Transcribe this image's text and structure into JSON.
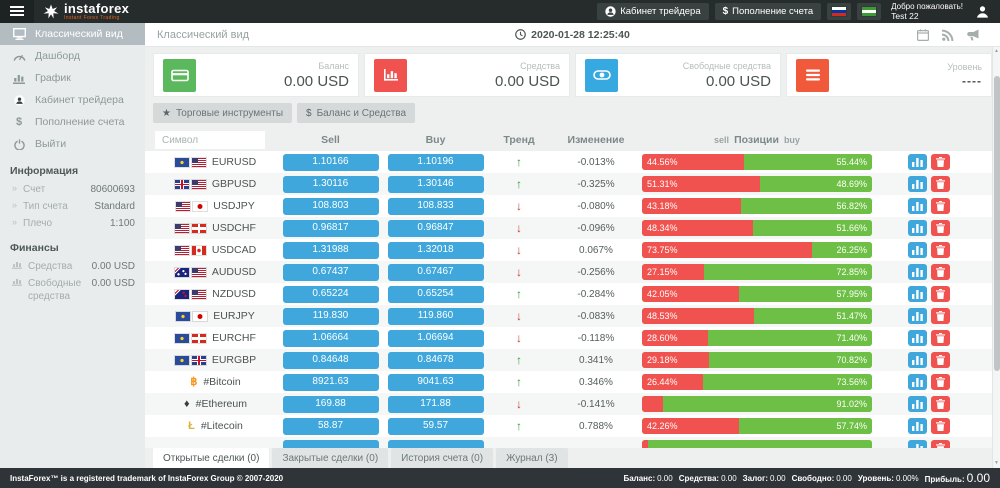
{
  "colors": {
    "accent_blue": "#3fa7dc",
    "negative_red": "#f0534f",
    "positive_green": "#6dbf45",
    "topbar": "#262b2b",
    "sidebar_active": "#b3bcc1"
  },
  "topbar": {
    "logo_title": "instaforex",
    "logo_subtitle": "Instant Forex Trading",
    "trader_cabinet_label": "Кабинет трейдера",
    "deposit_label": "Пополнение счета",
    "deposit_prefix": "$",
    "flags": [
      "ru",
      "ng"
    ],
    "welcome_text": "Добро пожаловать!",
    "username": "Test 22"
  },
  "sidebar": {
    "items": [
      {
        "label": "Классический вид",
        "active": true
      },
      {
        "label": "Дашборд",
        "active": false
      },
      {
        "label": "График",
        "active": false
      },
      {
        "label": "Кабинет трейдера",
        "active": false
      },
      {
        "label": "Пополнение счета",
        "active": false
      },
      {
        "label": "Выйти",
        "active": false
      }
    ],
    "info_header": "Информация",
    "info_rows": [
      {
        "label": "Счет",
        "value": "80600693"
      },
      {
        "label": "Тип счета",
        "value": "Standard"
      },
      {
        "label": "Плечо",
        "value": "1:100"
      }
    ],
    "finance_header": "Финансы",
    "finance_rows": [
      {
        "label": "Средства",
        "value": "0.00 USD"
      },
      {
        "label": "Свободные средства",
        "value": "0.00 USD"
      }
    ]
  },
  "main_header": {
    "title": "Классический вид",
    "timestamp": "2020-01-28 12:25:40"
  },
  "cards": [
    {
      "label": "Баланс",
      "value": "0.00 USD",
      "color": "#5cb85c",
      "icon": "credit-card-icon"
    },
    {
      "label": "Средства",
      "value": "0.00 USD",
      "color": "#f0534f",
      "icon": "bar-chart-icon"
    },
    {
      "label": "Свободные средства",
      "value": "0.00 USD",
      "color": "#36a9e1",
      "icon": "eye-icon"
    },
    {
      "label": "Уровень",
      "value": "----",
      "color": "#f0593a",
      "icon": "menu-icon",
      "masked": true
    }
  ],
  "toolbar": {
    "instruments_label": "Торговые инструменты",
    "balance_label": "Баланс и Средства",
    "balance_prefix": "$"
  },
  "table": {
    "filter_placeholder": "Символ",
    "col_sell": "Sell",
    "col_buy": "Buy",
    "col_trend": "Тренд",
    "col_change": "Изменение",
    "col_pos_sell": "sell",
    "col_pos": "Позиции",
    "col_pos_buy": "buy",
    "rows": [
      {
        "symbol": "EURUSD",
        "flags": [
          "eu",
          "us"
        ],
        "crypto": "",
        "sell": "1.10166",
        "buy": "1.10196",
        "trend": "up",
        "change": "-0.013%",
        "sell_pct": "44.56%",
        "buy_pct": "55.44%",
        "sell_val": 44.56
      },
      {
        "symbol": "GBPUSD",
        "flags": [
          "gb",
          "us"
        ],
        "crypto": "",
        "sell": "1.30116",
        "buy": "1.30146",
        "trend": "up",
        "change": "-0.325%",
        "sell_pct": "51.31%",
        "buy_pct": "48.69%",
        "sell_val": 51.31
      },
      {
        "symbol": "USDJPY",
        "flags": [
          "us",
          "jp"
        ],
        "crypto": "",
        "sell": "108.803",
        "buy": "108.833",
        "trend": "down",
        "change": "-0.080%",
        "sell_pct": "43.18%",
        "buy_pct": "56.82%",
        "sell_val": 43.18
      },
      {
        "symbol": "USDCHF",
        "flags": [
          "us",
          "ch"
        ],
        "crypto": "",
        "sell": "0.96817",
        "buy": "0.96847",
        "trend": "down",
        "change": "-0.096%",
        "sell_pct": "48.34%",
        "buy_pct": "51.66%",
        "sell_val": 48.34
      },
      {
        "symbol": "USDCAD",
        "flags": [
          "us",
          "ca"
        ],
        "crypto": "",
        "sell": "1.31988",
        "buy": "1.32018",
        "trend": "down",
        "change": "0.067%",
        "sell_pct": "73.75%",
        "buy_pct": "26.25%",
        "sell_val": 73.75
      },
      {
        "symbol": "AUDUSD",
        "flags": [
          "au",
          "us"
        ],
        "crypto": "",
        "sell": "0.67437",
        "buy": "0.67467",
        "trend": "down",
        "change": "-0.256%",
        "sell_pct": "27.15%",
        "buy_pct": "72.85%",
        "sell_val": 27.15
      },
      {
        "symbol": "NZDUSD",
        "flags": [
          "nz",
          "us"
        ],
        "crypto": "",
        "sell": "0.65224",
        "buy": "0.65254",
        "trend": "up",
        "change": "-0.284%",
        "sell_pct": "42.05%",
        "buy_pct": "57.95%",
        "sell_val": 42.05
      },
      {
        "symbol": "EURJPY",
        "flags": [
          "eu",
          "jp"
        ],
        "crypto": "",
        "sell": "119.830",
        "buy": "119.860",
        "trend": "down",
        "change": "-0.083%",
        "sell_pct": "48.53%",
        "buy_pct": "51.47%",
        "sell_val": 48.53
      },
      {
        "symbol": "EURCHF",
        "flags": [
          "eu",
          "ch"
        ],
        "crypto": "",
        "sell": "1.06664",
        "buy": "1.06694",
        "trend": "down",
        "change": "-0.118%",
        "sell_pct": "28.60%",
        "buy_pct": "71.40%",
        "sell_val": 28.6
      },
      {
        "symbol": "EURGBP",
        "flags": [
          "eu",
          "gb"
        ],
        "crypto": "",
        "sell": "0.84648",
        "buy": "0.84678",
        "trend": "up",
        "change": "0.341%",
        "sell_pct": "29.18%",
        "buy_pct": "70.82%",
        "sell_val": 29.18
      },
      {
        "symbol": "#Bitcoin",
        "flags": [],
        "crypto": "btc",
        "sell": "8921.63",
        "buy": "9041.63",
        "trend": "up",
        "change": "0.346%",
        "sell_pct": "26.44%",
        "buy_pct": "73.56%",
        "sell_val": 26.44
      },
      {
        "symbol": "#Ethereum",
        "flags": [],
        "crypto": "eth",
        "sell": "169.88",
        "buy": "171.88",
        "trend": "down",
        "change": "-0.141%",
        "sell_pct": "",
        "buy_pct": "91.02%",
        "sell_val": 8.98
      },
      {
        "symbol": "#Litecoin",
        "flags": [],
        "crypto": "ltc",
        "sell": "58.87",
        "buy": "59.57",
        "trend": "up",
        "change": "0.788%",
        "sell_pct": "42.26%",
        "buy_pct": "57.74%",
        "sell_val": 42.26
      },
      {
        "symbol": "",
        "flags": [],
        "crypto": "",
        "sell": "",
        "buy": "",
        "trend": "",
        "change": "",
        "sell_pct": "",
        "buy_pct": "",
        "sell_val": 2.5
      }
    ]
  },
  "tabs": [
    {
      "label": "Открытые сделки (0)",
      "active": true
    },
    {
      "label": "Закрытые сделки (0)",
      "active": false
    },
    {
      "label": "История счета (0)",
      "active": false
    },
    {
      "label": "Журнал (3)",
      "active": false
    }
  ],
  "footer": {
    "trademark": "InstaForex™ is a registered trademark of InstaForex Group © 2007-2020",
    "stats": [
      {
        "label": "Баланс:",
        "value": "0.00",
        "large": false
      },
      {
        "label": "Средства:",
        "value": "0.00",
        "large": false
      },
      {
        "label": "Залог:",
        "value": "0.00",
        "large": false
      },
      {
        "label": "Свободно:",
        "value": "0.00",
        "large": false
      },
      {
        "label": "Уровень:",
        "value": "0.00%",
        "large": false
      },
      {
        "label": "Прибыль:",
        "value": "0.00",
        "large": true
      }
    ]
  }
}
